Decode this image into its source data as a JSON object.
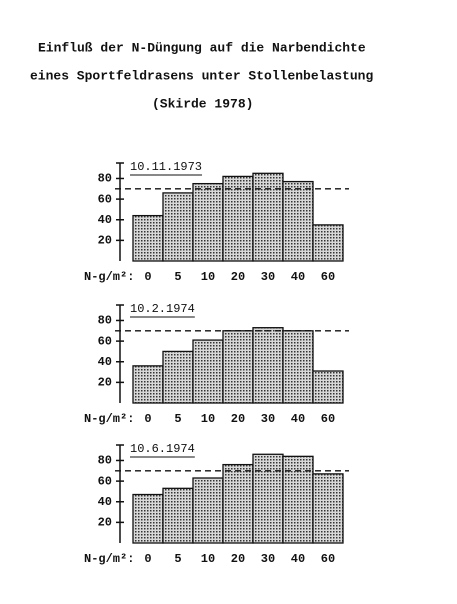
{
  "header": {
    "lines": [
      "Einfluß der N-Düngung auf die Narbendichte",
      "eines Sportfeldrasens unter Stollenbelastung",
      "(Skirde 1978)"
    ]
  },
  "chart_data": [
    {
      "type": "bar",
      "title": "10.11.1973",
      "xlabel": "N-g/m²:",
      "categories": [
        "0",
        "5",
        "10",
        "20",
        "30",
        "40",
        "60"
      ],
      "values": [
        44,
        66,
        75,
        82,
        85,
        77,
        35
      ],
      "ylim": [
        0,
        95
      ],
      "yticks": [
        20,
        40,
        60,
        80
      ],
      "reference": 70,
      "color": "#9a9a9a"
    },
    {
      "type": "bar",
      "title": "10.2.1974",
      "xlabel": "N-g/m²:",
      "categories": [
        "0",
        "5",
        "10",
        "20",
        "30",
        "40",
        "60"
      ],
      "values": [
        36,
        50,
        61,
        70,
        73,
        70,
        31
      ],
      "ylim": [
        0,
        95
      ],
      "yticks": [
        20,
        40,
        60,
        80
      ],
      "reference": 70,
      "color": "#9a9a9a"
    },
    {
      "type": "bar",
      "title": "10.6.1974",
      "xlabel": "N-g/m²:",
      "categories": [
        "0",
        "5",
        "10",
        "20",
        "30",
        "40",
        "60"
      ],
      "values": [
        47,
        53,
        63,
        76,
        86,
        84,
        67
      ],
      "ylim": [
        0,
        95
      ],
      "yticks": [
        20,
        40,
        60,
        80
      ],
      "reference": 70,
      "color": "#9a9a9a"
    }
  ]
}
